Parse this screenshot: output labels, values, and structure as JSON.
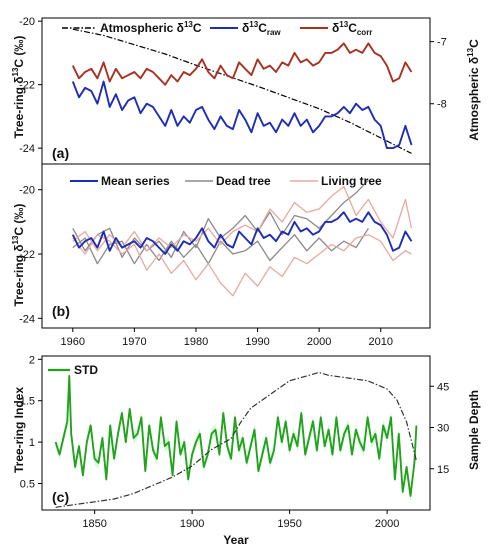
{
  "chart_data": [
    {
      "panel": "(a)",
      "type": "line",
      "xlim": [
        1955,
        2018
      ],
      "ylabel": "Tree-ring δ13C (‰)",
      "ylim": [
        -24.5,
        -19.9
      ],
      "yticks": [
        -24,
        -22,
        -20
      ],
      "y2label": "Atmospheric δ13C",
      "y2lim": [
        -8.97,
        -6.62
      ],
      "y2ticks": [
        -8,
        -7
      ],
      "grid": false,
      "legend": "top",
      "series": [
        {
          "name": "Atmospheric δ13C",
          "axis": "right",
          "style": "dash-dot",
          "color": "#000000",
          "x": [
            1960,
            1965,
            1970,
            1975,
            1980,
            1985,
            1990,
            1995,
            2000,
            2005,
            2010,
            2015
          ],
          "values": [
            -6.8,
            -6.9,
            -7.05,
            -7.2,
            -7.38,
            -7.55,
            -7.72,
            -7.9,
            -8.08,
            -8.3,
            -8.55,
            -8.8
          ]
        },
        {
          "name": "δ13Craw",
          "axis": "left",
          "color": "#1f2db5",
          "x": [
            1960,
            1961,
            1962,
            1963,
            1964,
            1965,
            1966,
            1967,
            1968,
            1969,
            1970,
            1971,
            1972,
            1973,
            1974,
            1975,
            1976,
            1977,
            1978,
            1979,
            1980,
            1981,
            1982,
            1983,
            1984,
            1985,
            1986,
            1987,
            1988,
            1989,
            1990,
            1991,
            1992,
            1993,
            1994,
            1995,
            1996,
            1997,
            1998,
            1999,
            2000,
            2001,
            2002,
            2003,
            2004,
            2005,
            2006,
            2007,
            2008,
            2009,
            2010,
            2011,
            2012,
            2013,
            2014,
            2015
          ],
          "values": [
            -21.9,
            -22.4,
            -22.1,
            -22.2,
            -22.6,
            -21.9,
            -22.7,
            -22.3,
            -22.8,
            -22.5,
            -22.4,
            -22.9,
            -22.6,
            -22.7,
            -23.0,
            -23.3,
            -22.8,
            -23.3,
            -23.0,
            -23.2,
            -22.8,
            -22.7,
            -23.1,
            -23.4,
            -23.0,
            -23.3,
            -23.4,
            -22.8,
            -23.1,
            -23.5,
            -22.9,
            -23.3,
            -23.2,
            -23.5,
            -23.1,
            -23.3,
            -22.9,
            -23.3,
            -23.1,
            -23.5,
            -23.3,
            -23.0,
            -23.0,
            -22.9,
            -22.7,
            -22.9,
            -22.6,
            -22.8,
            -22.7,
            -23.1,
            -23.3,
            -24.0,
            -24.0,
            -23.9,
            -23.3,
            -23.9
          ]
        },
        {
          "name": "δ13Ccorr",
          "axis": "left",
          "color": "#a83222",
          "x": [
            1960,
            1961,
            1962,
            1963,
            1964,
            1965,
            1966,
            1967,
            1968,
            1969,
            1970,
            1971,
            1972,
            1973,
            1974,
            1975,
            1976,
            1977,
            1978,
            1979,
            1980,
            1981,
            1982,
            1983,
            1984,
            1985,
            1986,
            1987,
            1988,
            1989,
            1990,
            1991,
            1992,
            1993,
            1994,
            1995,
            1996,
            1997,
            1998,
            1999,
            2000,
            2001,
            2002,
            2003,
            2004,
            2005,
            2006,
            2007,
            2008,
            2009,
            2010,
            2011,
            2012,
            2013,
            2014,
            2015
          ],
          "values": [
            -21.4,
            -21.8,
            -21.6,
            -21.5,
            -21.8,
            -21.3,
            -21.9,
            -21.5,
            -21.8,
            -21.7,
            -21.6,
            -21.8,
            -21.5,
            -21.6,
            -21.8,
            -22.0,
            -21.7,
            -21.9,
            -21.6,
            -21.7,
            -21.5,
            -21.2,
            -21.6,
            -21.8,
            -21.4,
            -21.7,
            -21.8,
            -21.3,
            -21.5,
            -21.7,
            -21.2,
            -21.5,
            -21.4,
            -21.6,
            -21.3,
            -21.4,
            -21.0,
            -21.3,
            -21.2,
            -21.4,
            -21.3,
            -21.0,
            -21.0,
            -20.9,
            -20.7,
            -21.0,
            -20.9,
            -21.0,
            -20.7,
            -21.0,
            -21.1,
            -21.4,
            -21.9,
            -21.8,
            -21.3,
            -21.6
          ]
        }
      ]
    },
    {
      "panel": "(b)",
      "type": "line",
      "xlabel": "",
      "xlim": [
        1955,
        2018
      ],
      "xticks": [
        1960,
        1970,
        1980,
        1990,
        2000,
        2010
      ],
      "ylabel": "Tree-ring δ13C (‰)",
      "ylim": [
        -24.3,
        -19.2
      ],
      "yticks": [
        -24,
        -22,
        -20
      ],
      "grid": false,
      "legend": "top",
      "series": [
        {
          "name": "Mean series",
          "color": "#1f2db5",
          "x": [
            1960,
            1961,
            1962,
            1963,
            1964,
            1965,
            1966,
            1967,
            1968,
            1969,
            1970,
            1971,
            1972,
            1973,
            1974,
            1975,
            1976,
            1977,
            1978,
            1979,
            1980,
            1981,
            1982,
            1983,
            1984,
            1985,
            1986,
            1987,
            1988,
            1989,
            1990,
            1991,
            1992,
            1993,
            1994,
            1995,
            1996,
            1997,
            1998,
            1999,
            2000,
            2001,
            2002,
            2003,
            2004,
            2005,
            2006,
            2007,
            2008,
            2009,
            2010,
            2011,
            2012,
            2013,
            2014,
            2015
          ],
          "values": [
            -21.4,
            -21.8,
            -21.6,
            -21.5,
            -21.8,
            -21.3,
            -21.9,
            -21.5,
            -21.8,
            -21.7,
            -21.6,
            -21.8,
            -21.5,
            -21.6,
            -21.8,
            -22.0,
            -21.7,
            -21.9,
            -21.6,
            -21.7,
            -21.5,
            -21.2,
            -21.6,
            -21.8,
            -21.4,
            -21.7,
            -21.8,
            -21.3,
            -21.5,
            -21.7,
            -21.2,
            -21.5,
            -21.4,
            -21.6,
            -21.3,
            -21.4,
            -21.0,
            -21.3,
            -21.2,
            -21.4,
            -21.3,
            -21.0,
            -21.0,
            -20.9,
            -20.7,
            -21.0,
            -20.9,
            -21.0,
            -20.7,
            -21.0,
            -21.1,
            -21.4,
            -21.9,
            -21.8,
            -21.3,
            -21.6
          ]
        },
        {
          "name": "Dead tree",
          "color": "#8a8a8a",
          "x": [
            1960,
            1962,
            1964,
            1966,
            1968,
            1970,
            1972,
            1974,
            1976,
            1978,
            1980,
            1982,
            1984,
            1986,
            1988,
            1990,
            1992,
            1994,
            1996,
            1998,
            2000,
            2002,
            2004,
            2006,
            2008
          ],
          "values": [
            -21.2,
            -21.9,
            -21.4,
            -21.2,
            -22.1,
            -21.5,
            -21.9,
            -21.6,
            -22.1,
            -21.3,
            -21.8,
            -20.9,
            -21.5,
            -21.2,
            -20.8,
            -21.3,
            -20.7,
            -21.4,
            -20.8,
            -20.9,
            -21.2,
            -20.8,
            -20.4,
            -20.1,
            -19.7
          ]
        },
        {
          "name": "Dead tree",
          "color": "#8a8a8a",
          "x": [
            1960,
            1962,
            1964,
            1966,
            1968,
            1970,
            1972,
            1974,
            1976,
            1978,
            1980,
            1982,
            1984,
            1986,
            1988,
            1990,
            1992,
            1994,
            1996,
            1998,
            2000,
            2002,
            2004,
            2006,
            2008
          ],
          "values": [
            -21.8,
            -21.5,
            -22.3,
            -21.7,
            -21.6,
            -22.3,
            -21.7,
            -22.2,
            -21.6,
            -22.1,
            -21.7,
            -22.3,
            -21.6,
            -22.0,
            -21.9,
            -21.6,
            -22.2,
            -21.8,
            -21.4,
            -21.9,
            -21.5,
            -21.9,
            -21.6,
            -21.8,
            -21.2
          ]
        },
        {
          "name": "Living tree",
          "color": "#e8a9a1",
          "x": [
            1960,
            1962,
            1964,
            1966,
            1968,
            1970,
            1972,
            1974,
            1976,
            1978,
            1980,
            1982,
            1984,
            1986,
            1988,
            1990,
            1992,
            1994,
            1996,
            1998,
            2000,
            2002,
            2004,
            2006,
            2008,
            2010,
            2012,
            2014,
            2015
          ],
          "values": [
            -21.5,
            -22.0,
            -21.4,
            -21.6,
            -22.0,
            -21.7,
            -22.5,
            -22.0,
            -22.6,
            -22.2,
            -22.8,
            -22.3,
            -22.9,
            -23.3,
            -22.6,
            -23.0,
            -22.4,
            -22.7,
            -22.1,
            -22.3,
            -22.0,
            -21.7,
            -21.9,
            -21.5,
            -21.4,
            -21.6,
            -22.2,
            -21.9,
            -22.0
          ]
        },
        {
          "name": "Living tree",
          "color": "#e8a9a1",
          "x": [
            1960,
            1962,
            1964,
            1966,
            1968,
            1970,
            1972,
            1974,
            1976,
            1978,
            1980,
            1982,
            1984,
            1986,
            1988,
            1990,
            1992,
            1994,
            1996,
            1998,
            2000,
            2002,
            2004,
            2006,
            2008,
            2010,
            2012,
            2014,
            2015
          ],
          "values": [
            -21.6,
            -21.3,
            -21.9,
            -21.4,
            -21.8,
            -21.3,
            -21.9,
            -21.5,
            -21.8,
            -21.4,
            -21.6,
            -21.2,
            -21.7,
            -21.3,
            -21.1,
            -21.3,
            -20.6,
            -21.0,
            -20.4,
            -20.7,
            -20.6,
            -20.2,
            -19.9,
            -20.8,
            -20.3,
            -21.0,
            -21.5,
            -20.3,
            -21.2
          ]
        }
      ]
    },
    {
      "panel": "(c)",
      "type": "line",
      "xlabel": "Year",
      "xlim": [
        1823,
        2022
      ],
      "xticks": [
        1850,
        1900,
        1950,
        2000
      ],
      "ylabel": "Tree-ring Index",
      "ylim": [
        0.18,
        2.04
      ],
      "yticks": [
        0.5,
        1.0,
        1.5,
        2.0
      ],
      "y2label": "Sample Depth",
      "y2lim": [
        0,
        56
      ],
      "y2ticks": [
        15,
        30,
        45
      ],
      "grid": false,
      "legend": "top-left",
      "series": [
        {
          "name": "STD",
          "axis": "left",
          "color": "#22a31e",
          "band_color": "#b8f3bf",
          "x": [
            1830,
            1832,
            1834,
            1836,
            1837,
            1838,
            1840,
            1842,
            1844,
            1846,
            1848,
            1850,
            1852,
            1854,
            1856,
            1858,
            1860,
            1862,
            1864,
            1866,
            1868,
            1870,
            1872,
            1874,
            1876,
            1878,
            1880,
            1882,
            1884,
            1886,
            1888,
            1890,
            1892,
            1894,
            1896,
            1898,
            1900,
            1902,
            1904,
            1906,
            1908,
            1910,
            1912,
            1914,
            1916,
            1918,
            1920,
            1922,
            1924,
            1926,
            1928,
            1930,
            1932,
            1934,
            1936,
            1938,
            1940,
            1942,
            1944,
            1946,
            1948,
            1950,
            1952,
            1954,
            1956,
            1958,
            1960,
            1962,
            1964,
            1966,
            1968,
            1970,
            1972,
            1974,
            1976,
            1978,
            1980,
            1982,
            1984,
            1986,
            1988,
            1990,
            1992,
            1994,
            1996,
            1998,
            2000,
            2002,
            2004,
            2006,
            2008,
            2010,
            2012,
            2014,
            2015
          ],
          "values": [
            1.0,
            0.85,
            1.05,
            1.25,
            1.8,
            1.1,
            0.7,
            0.95,
            0.6,
            1.0,
            1.2,
            0.8,
            0.75,
            1.05,
            0.55,
            1.2,
            0.8,
            1.1,
            1.35,
            1.0,
            1.4,
            1.05,
            1.1,
            1.3,
            0.65,
            1.2,
            0.9,
            0.8,
            1.3,
            0.95,
            1.0,
            0.6,
            1.25,
            0.85,
            1.0,
            0.55,
            0.85,
            1.0,
            1.1,
            0.7,
            0.85,
            1.1,
            1.15,
            0.85,
            1.35,
            0.95,
            0.8,
            1.3,
            0.9,
            1.05,
            0.75,
            0.95,
            1.15,
            0.65,
            0.85,
            1.05,
            0.75,
            0.9,
            1.3,
            1.0,
            1.25,
            0.9,
            1.1,
            0.95,
            1.35,
            0.85,
            1.05,
            1.25,
            0.9,
            1.3,
            0.95,
            1.15,
            0.85,
            1.3,
            0.9,
            1.1,
            1.2,
            0.85,
            1.15,
            1.0,
            0.9,
            1.3,
            1.0,
            1.1,
            0.8,
            1.2,
            1.05,
            1.3,
            0.55,
            1.1,
            0.4,
            0.7,
            0.35,
            0.75,
            1.2
          ]
        },
        {
          "name": "Sample Depth",
          "axis": "right",
          "style": "dash-dot",
          "color": "#333333",
          "x": [
            1830,
            1840,
            1850,
            1860,
            1870,
            1880,
            1890,
            1900,
            1910,
            1920,
            1925,
            1930,
            1940,
            1950,
            1960,
            1965,
            1970,
            1980,
            1990,
            2000,
            2005,
            2010,
            2015
          ],
          "values": [
            1,
            2,
            3,
            4,
            6,
            9,
            12,
            16,
            22,
            26,
            32,
            37,
            42,
            47,
            49,
            50,
            49,
            48,
            47,
            44,
            40,
            32,
            18
          ]
        }
      ]
    }
  ],
  "labels": {
    "a_panel": "(a)",
    "b_panel": "(b)",
    "c_panel": "(c)",
    "ab_ylabel": "Tree-ring δ13C (‰)",
    "a_y2label": "Atmospheric δ13C",
    "c_ylabel": "Tree-ring Index",
    "c_y2label": "Sample Depth",
    "c_xlabel": "Year",
    "legend_atm": "Atmospheric δ13C",
    "legend_raw": "δ13Craw",
    "legend_corr": "δ13Ccorr",
    "legend_mean": "Mean series",
    "legend_dead": "Dead tree",
    "legend_living": "Living tree",
    "legend_std": "STD"
  }
}
